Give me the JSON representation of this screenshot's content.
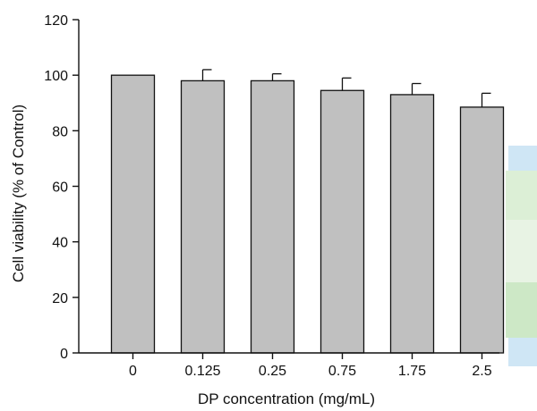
{
  "chart_data": {
    "type": "bar",
    "title": "",
    "xlabel": "DP concentration (mg/mL)",
    "ylabel": "Cell viability (% of Control)",
    "categories": [
      "0",
      "0.125",
      "0.25",
      "0.75",
      "1.75",
      "2.5"
    ],
    "values": [
      100,
      98,
      98,
      94.5,
      93,
      88.5
    ],
    "error": [
      0,
      4,
      2.5,
      4.5,
      4,
      5
    ],
    "ylim": [
      0,
      120
    ],
    "yticks": [
      0,
      20,
      40,
      60,
      80,
      100,
      120
    ],
    "grid": false,
    "legend": "none",
    "bar_color": "#c0c0c0",
    "edge_color": "#111111"
  },
  "decoration": {
    "right_strip_colors": [
      "#cfe6f5",
      "#dcefd6",
      "#e8f3e4",
      "#cde8c6"
    ]
  }
}
